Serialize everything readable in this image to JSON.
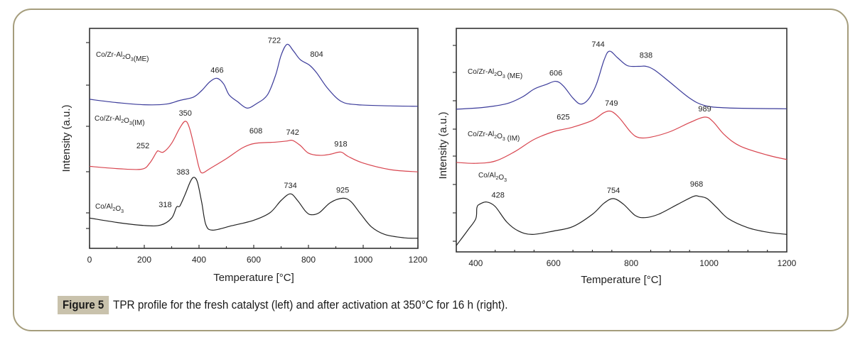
{
  "caption": {
    "label": "Figure 5",
    "text": "TPR profile for the fresh catalyst (left) and after activation at 350°C for 16 h (right)."
  },
  "colors": {
    "frame": "#a59d7c",
    "caption_label_bg": "#c9c2ac",
    "series_ME": "#3b3b9a",
    "series_IM": "#d8454f",
    "series_Co": "#222222"
  },
  "chart_data": [
    {
      "type": "line",
      "title": "",
      "xlabel": "Temperature [°C]",
      "ylabel": "Intensity (a.u.)",
      "xlim": [
        0,
        1200
      ],
      "ylim": [
        0,
        100
      ],
      "xticks": [
        0,
        200,
        400,
        600,
        800,
        1000,
        1200
      ],
      "ytick_labels": [],
      "grid": false,
      "series": [
        {
          "name": "Co/Zr-Al2O3(ME)",
          "label_main": "Co/Zr-Al",
          "label_sub1": "2",
          "label_mid": "O",
          "label_sub2": "3",
          "label_end": "(ME)",
          "color_key": "series_ME",
          "points": [
            [
              0,
              71
            ],
            [
              100,
              69.5
            ],
            [
              200,
              68.5
            ],
            [
              280,
              68.8
            ],
            [
              330,
              70.5
            ],
            [
              380,
              72
            ],
            [
              410,
              75
            ],
            [
              440,
              79
            ],
            [
              466,
              80.5
            ],
            [
              490,
              78
            ],
            [
              510,
              73
            ],
            [
              540,
              70
            ],
            [
              575,
              67
            ],
            [
              610,
              69
            ],
            [
              650,
              73
            ],
            [
              680,
              82
            ],
            [
              700,
              91
            ],
            [
              722,
              96
            ],
            [
              745,
              93
            ],
            [
              770,
              89
            ],
            [
              804,
              86.5
            ],
            [
              830,
              83
            ],
            [
              870,
              76
            ],
            [
              920,
              70
            ],
            [
              980,
              68.5
            ],
            [
              1100,
              68
            ],
            [
              1200,
              67.8
            ]
          ],
          "peaks": [
            [
              466,
              "466"
            ],
            [
              722,
              "722"
            ],
            [
              804,
              "804"
            ]
          ]
        },
        {
          "name": "Co/Zr-Al2O3(IM)",
          "label_main": "Co/Zr-Al",
          "label_sub1": "2",
          "label_mid": "O",
          "label_sub2": "3",
          "label_end": "(IM)",
          "color_key": "series_IM",
          "points": [
            [
              0,
              40.5
            ],
            [
              100,
              39.5
            ],
            [
              190,
              39.2
            ],
            [
              220,
              42
            ],
            [
              245,
              47
            ],
            [
              252,
              47.5
            ],
            [
              270,
              47
            ],
            [
              300,
              51
            ],
            [
              330,
              58
            ],
            [
              350,
              61
            ],
            [
              365,
              58
            ],
            [
              385,
              48
            ],
            [
              400,
              40
            ],
            [
              412,
              37.5
            ],
            [
              440,
              39.5
            ],
            [
              500,
              44
            ],
            [
              560,
              49
            ],
            [
              608,
              51
            ],
            [
              680,
              51.5
            ],
            [
              720,
              52
            ],
            [
              742,
              52.3
            ],
            [
              770,
              50
            ],
            [
              800,
              46.5
            ],
            [
              840,
              45.5
            ],
            [
              880,
              46
            ],
            [
              918,
              47
            ],
            [
              945,
              45
            ],
            [
              1000,
              42
            ],
            [
              1100,
              39
            ],
            [
              1200,
              38
            ]
          ],
          "peaks": [
            [
              252,
              "252"
            ],
            [
              350,
              "350"
            ],
            [
              608,
              "608"
            ],
            [
              742,
              "742"
            ],
            [
              918,
              "918"
            ]
          ]
        },
        {
          "name": "Co/Al2O3",
          "label_main": "Co/Al",
          "label_sub1": "2",
          "label_mid": "O",
          "label_sub2": "3",
          "label_end": "",
          "color_key": "series_Co",
          "points": [
            [
              0,
              17
            ],
            [
              100,
              15
            ],
            [
              200,
              13.6
            ],
            [
              260,
              13.8
            ],
            [
              300,
              17
            ],
            [
              318,
              22
            ],
            [
              330,
              22.5
            ],
            [
              350,
              28
            ],
            [
              370,
              34
            ],
            [
              383,
              35.5
            ],
            [
              395,
              33
            ],
            [
              410,
              24
            ],
            [
              425,
              14
            ],
            [
              450,
              11.5
            ],
            [
              520,
              13.5
            ],
            [
              600,
              16
            ],
            [
              660,
              19.5
            ],
            [
              700,
              25
            ],
            [
              734,
              28
            ],
            [
              760,
              25
            ],
            [
              790,
              20
            ],
            [
              810,
              18.5
            ],
            [
              840,
              19.5
            ],
            [
              880,
              24
            ],
            [
              925,
              26
            ],
            [
              955,
              24.5
            ],
            [
              990,
              19
            ],
            [
              1030,
              13
            ],
            [
              1080,
              9.5
            ],
            [
              1150,
              8
            ],
            [
              1200,
              7.8
            ]
          ],
          "peaks": [
            [
              318,
              "318"
            ],
            [
              383,
              "383"
            ],
            [
              734,
              "734"
            ],
            [
              925,
              "925"
            ]
          ]
        }
      ]
    },
    {
      "type": "line",
      "title": "",
      "xlabel": "Temperature [°C]",
      "ylabel": "Intensity (a.u.)",
      "xlim": [
        350,
        1200
      ],
      "ylim": [
        0,
        100
      ],
      "xticks": [
        400,
        600,
        800,
        1000,
        1200
      ],
      "ytick_labels": [],
      "grid": false,
      "series": [
        {
          "name": "Co/Zr-Al2O3 (ME)",
          "label_main": "Co/Zr-Al",
          "label_sub1": "2",
          "label_mid": "O",
          "label_sub2": "3",
          "label_end": " (ME)",
          "color_key": "series_ME",
          "points": [
            [
              350,
              67
            ],
            [
              420,
              67.8
            ],
            [
              480,
              69.5
            ],
            [
              520,
              72.5
            ],
            [
              550,
              76
            ],
            [
              580,
              78
            ],
            [
              606,
              79.5
            ],
            [
              625,
              77.5
            ],
            [
              650,
              72
            ],
            [
              670,
              69.3
            ],
            [
              690,
              71.5
            ],
            [
              710,
              78
            ],
            [
              730,
              89
            ],
            [
              744,
              93
            ],
            [
              765,
              90
            ],
            [
              790,
              86.5
            ],
            [
              820,
              86.2
            ],
            [
              838,
              86.2
            ],
            [
              860,
              84.5
            ],
            [
              900,
              79
            ],
            [
              950,
              72
            ],
            [
              990,
              68.6
            ],
            [
              1050,
              67.6
            ],
            [
              1200,
              67.2
            ]
          ],
          "peaks": [
            [
              606,
              "606"
            ],
            [
              744,
              "744"
            ],
            [
              838,
              "838"
            ]
          ]
        },
        {
          "name": "Co/Zr-Al2O3 (IM)",
          "label_main": "Co/Zr-Al",
          "label_sub1": "2",
          "label_mid": "O",
          "label_sub2": "3",
          "label_end": " (IM)",
          "color_key": "series_IM",
          "points": [
            [
              350,
              43.2
            ],
            [
              400,
              42.8
            ],
            [
              450,
              43.8
            ],
            [
              500,
              48
            ],
            [
              550,
              53.5
            ],
            [
              600,
              57
            ],
            [
              625,
              58
            ],
            [
              650,
              59
            ],
            [
              700,
              62
            ],
            [
              730,
              65.5
            ],
            [
              749,
              66
            ],
            [
              770,
              63
            ],
            [
              800,
              56.5
            ],
            [
              820,
              54.3
            ],
            [
              850,
              54.5
            ],
            [
              900,
              57
            ],
            [
              950,
              61
            ],
            [
              989,
              63.5
            ],
            [
              1010,
              61.5
            ],
            [
              1040,
              55.5
            ],
            [
              1080,
              50.5
            ],
            [
              1150,
              46.5
            ],
            [
              1200,
              44.5
            ]
          ],
          "peaks": [
            [
              625,
              "625"
            ],
            [
              749,
              "749"
            ],
            [
              989,
              "989"
            ]
          ]
        },
        {
          "name": "Co/Al2O3",
          "label_main": "Co/Al",
          "label_sub1": "2",
          "label_mid": "O",
          "label_sub2": "3",
          "label_end": "",
          "color_key": "series_Co",
          "points": [
            [
              350,
              6
            ],
            [
              380,
              13
            ],
            [
              400,
              18
            ],
            [
              403,
              23
            ],
            [
              410,
              24.5
            ],
            [
              428,
              25.5
            ],
            [
              450,
              23.5
            ],
            [
              480,
              16.5
            ],
            [
              510,
              12.5
            ],
            [
              545,
              11
            ],
            [
              600,
              12.5
            ],
            [
              650,
              14.5
            ],
            [
              700,
              20
            ],
            [
              730,
              25
            ],
            [
              754,
              27
            ],
            [
              780,
              24.5
            ],
            [
              810,
              19.5
            ],
            [
              835,
              18.5
            ],
            [
              870,
              20
            ],
            [
              920,
              24.5
            ],
            [
              960,
              28
            ],
            [
              975,
              28
            ],
            [
              995,
              27
            ],
            [
              1020,
              23
            ],
            [
              1050,
              18
            ],
            [
              1100,
              14
            ],
            [
              1150,
              12
            ],
            [
              1200,
              11
            ]
          ],
          "peaks": [
            [
              428,
              "428"
            ],
            [
              754,
              "754"
            ],
            [
              968,
              "968"
            ]
          ]
        }
      ]
    }
  ]
}
